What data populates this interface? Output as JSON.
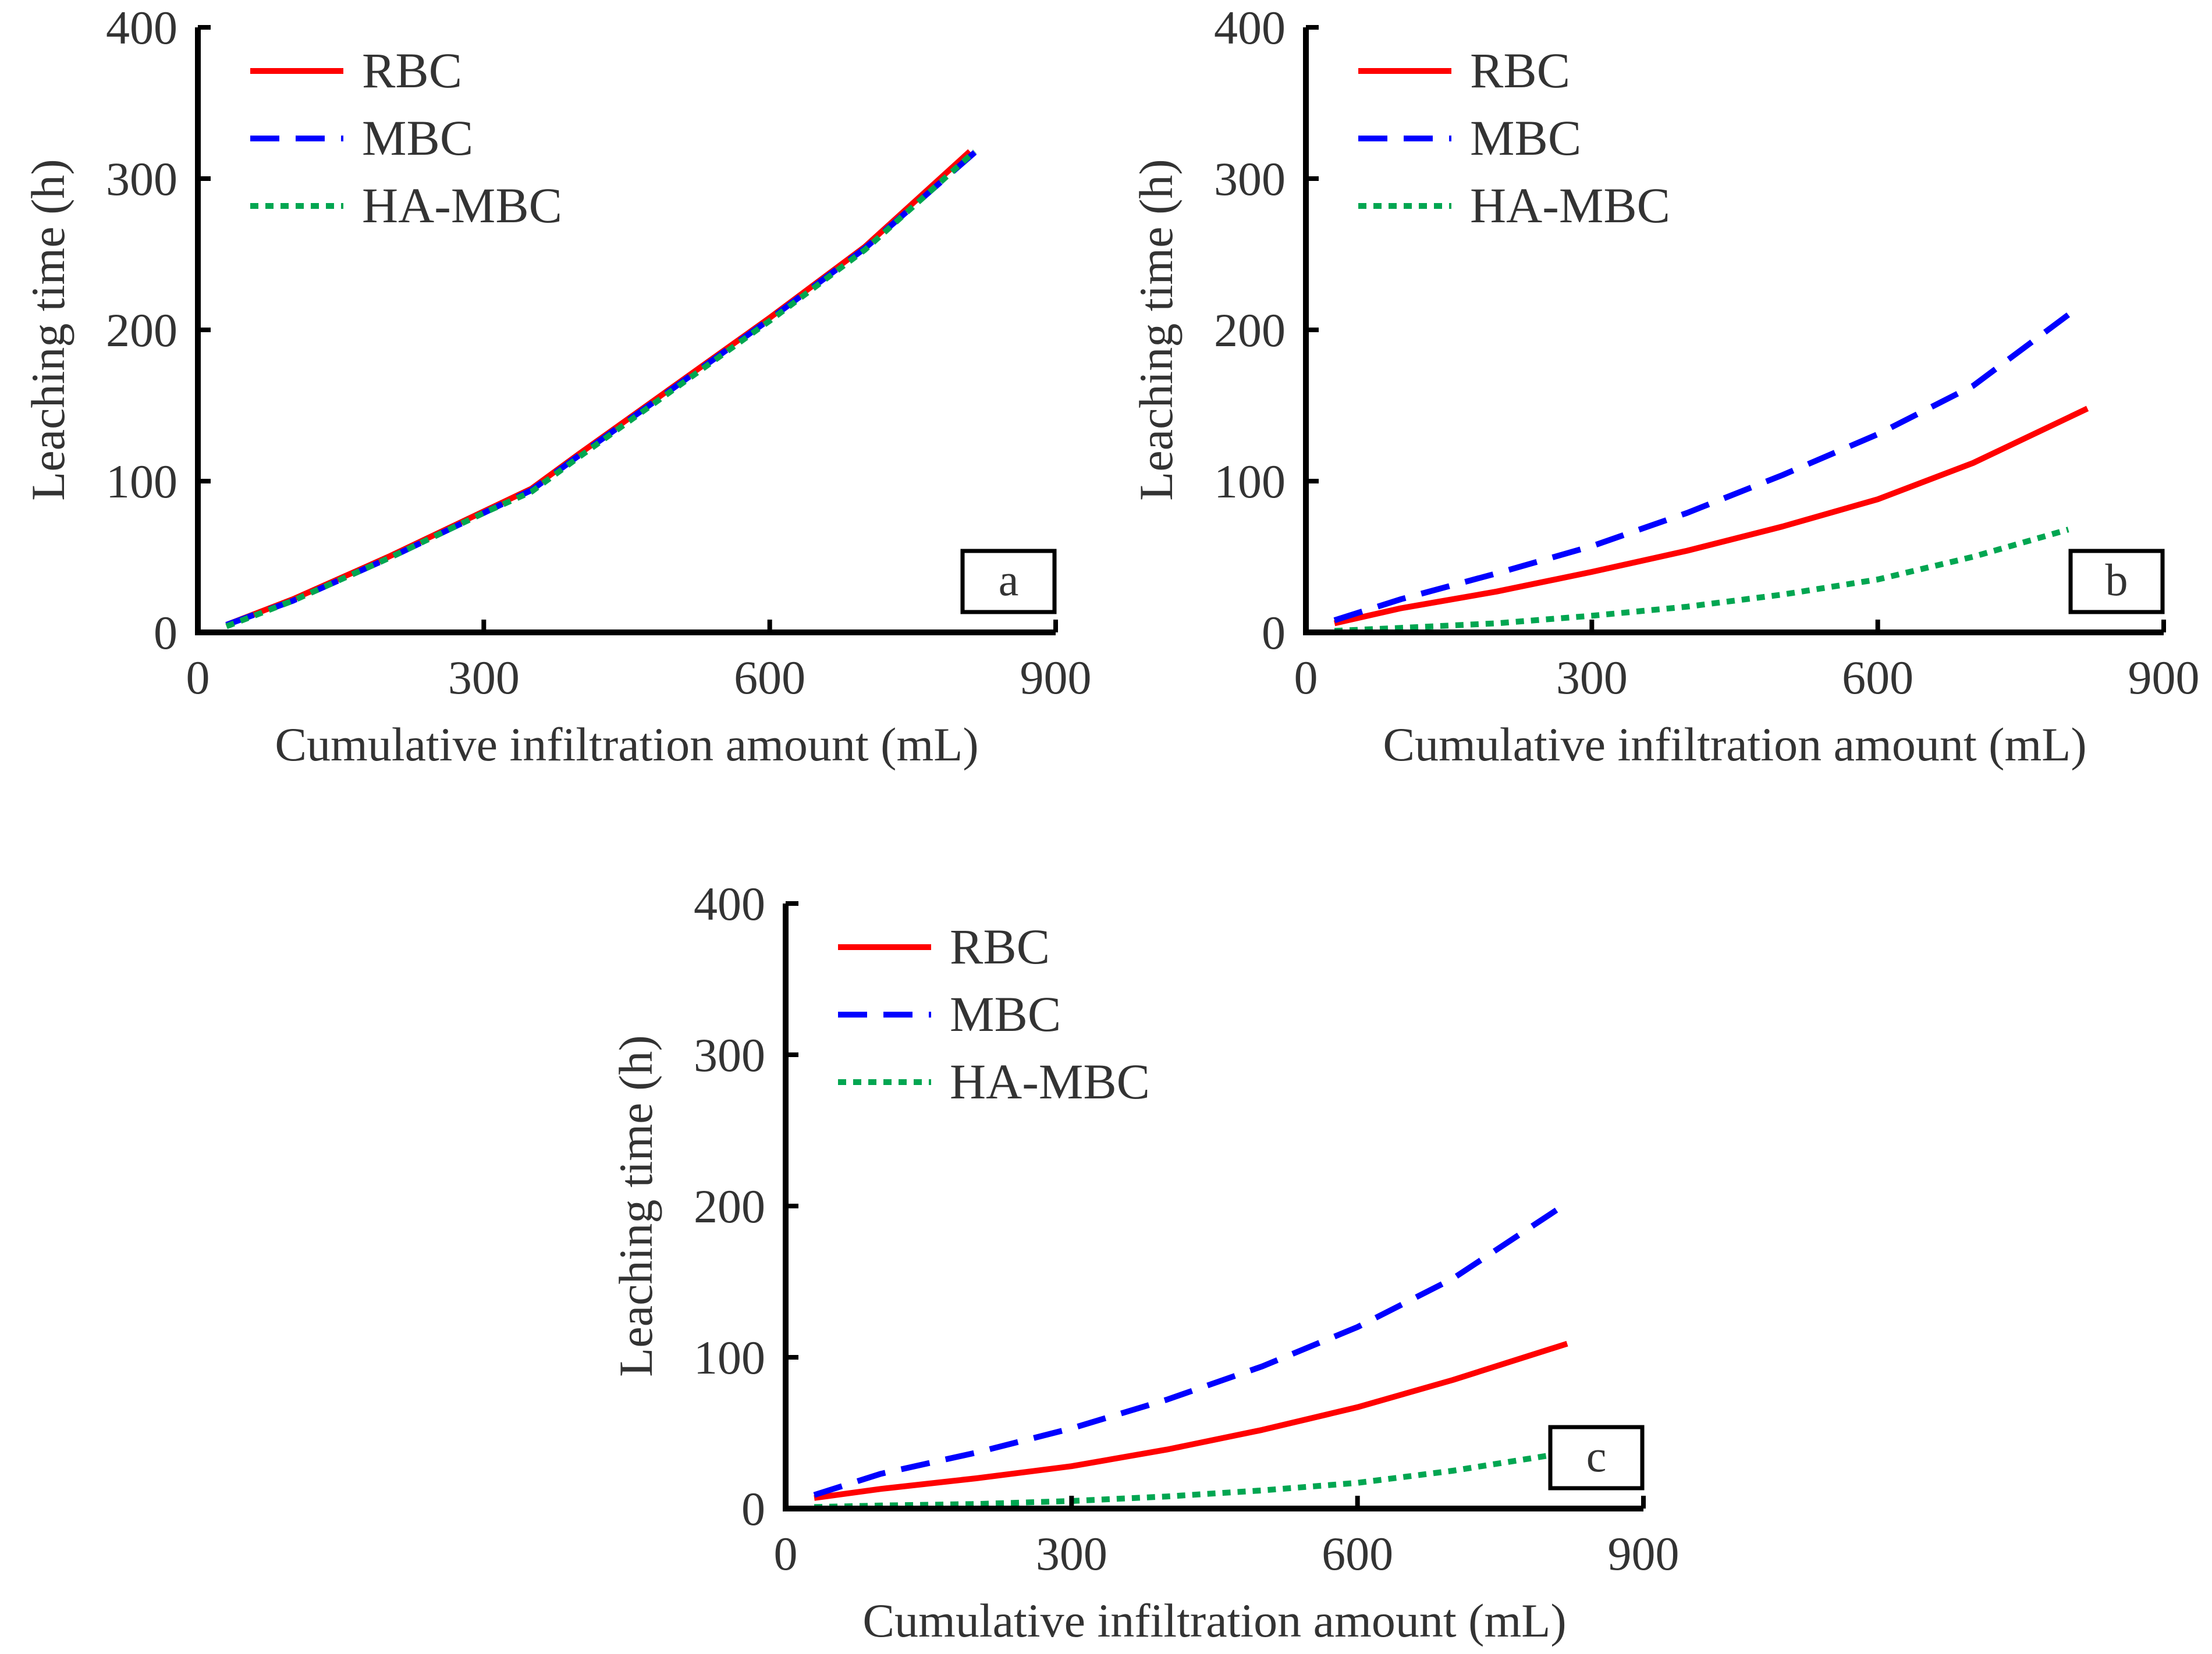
{
  "chart_data": [
    {
      "type": "line",
      "panel_label": "a",
      "xlabel": "Cumulative infiltration amount (mL)",
      "ylabel": "Leaching time (h)",
      "xlim": [
        0,
        900
      ],
      "ylim": [
        0,
        400
      ],
      "xticks": [
        0,
        300,
        600,
        900
      ],
      "yticks": [
        0,
        100,
        200,
        300,
        400
      ],
      "legend_position": "top-left",
      "series": [
        {
          "name": "RBC",
          "color": "#ff0000",
          "style": "solid",
          "x": [
            30,
            100,
            200,
            300,
            350,
            400,
            500,
            600,
            700,
            810
          ],
          "y": [
            5,
            22,
            50,
            80,
            95,
            118,
            163,
            208,
            255,
            318
          ]
        },
        {
          "name": "MBC",
          "color": "#0000ff",
          "style": "dashed",
          "x": [
            30,
            100,
            200,
            300,
            350,
            400,
            500,
            600,
            700,
            820
          ],
          "y": [
            5,
            21,
            49,
            79,
            94,
            117,
            162,
            207,
            254,
            320
          ]
        },
        {
          "name": "HA-MBC",
          "color": "#00a651",
          "style": "dotted",
          "x": [
            30,
            100,
            200,
            300,
            350,
            400,
            500,
            600,
            700,
            815
          ],
          "y": [
            4,
            21,
            49,
            79,
            93,
            116,
            161,
            206,
            253,
            318
          ]
        }
      ]
    },
    {
      "type": "line",
      "panel_label": "b",
      "xlabel": "Cumulative infiltration amount (mL)",
      "ylabel": "Leaching time (h)",
      "xlim": [
        0,
        900
      ],
      "ylim": [
        0,
        400
      ],
      "xticks": [
        0,
        300,
        600,
        900
      ],
      "yticks": [
        0,
        100,
        200,
        300,
        400
      ],
      "legend_position": "top-left",
      "series": [
        {
          "name": "RBC",
          "color": "#ff0000",
          "style": "solid",
          "x": [
            30,
            100,
            200,
            300,
            400,
            500,
            600,
            700,
            820
          ],
          "y": [
            6,
            16,
            27,
            40,
            54,
            70,
            88,
            112,
            148
          ]
        },
        {
          "name": "MBC",
          "color": "#0000ff",
          "style": "dashed",
          "x": [
            30,
            100,
            200,
            300,
            400,
            500,
            600,
            700,
            800
          ],
          "y": [
            8,
            22,
            39,
            57,
            79,
            104,
            131,
            163,
            210
          ]
        },
        {
          "name": "HA-MBC",
          "color": "#00a651",
          "style": "dotted",
          "x": [
            30,
            100,
            200,
            300,
            400,
            500,
            600,
            700,
            800
          ],
          "y": [
            1,
            3,
            6,
            11,
            17,
            25,
            35,
            50,
            68
          ]
        }
      ]
    },
    {
      "type": "line",
      "panel_label": "c",
      "xlabel": "Cumulative infiltration amount (mL)",
      "ylabel": "Leaching time (h)",
      "xlim": [
        0,
        900
      ],
      "ylim": [
        0,
        400
      ],
      "xticks": [
        0,
        300,
        600,
        900
      ],
      "yticks": [
        0,
        100,
        200,
        300,
        400
      ],
      "legend_position": "top-left",
      "series": [
        {
          "name": "RBC",
          "color": "#ff0000",
          "style": "solid",
          "x": [
            30,
            100,
            200,
            300,
            400,
            500,
            600,
            700,
            820
          ],
          "y": [
            7,
            13,
            20,
            28,
            39,
            52,
            67,
            85,
            109
          ]
        },
        {
          "name": "MBC",
          "color": "#0000ff",
          "style": "dashed",
          "x": [
            30,
            100,
            200,
            300,
            400,
            500,
            600,
            700,
            820
          ],
          "y": [
            9,
            23,
            37,
            53,
            72,
            94,
            120,
            152,
            202
          ]
        },
        {
          "name": "HA-MBC",
          "color": "#00a651",
          "style": "dotted",
          "x": [
            30,
            100,
            200,
            300,
            400,
            500,
            600,
            700,
            820
          ],
          "y": [
            1,
            2,
            3,
            5,
            8,
            12,
            17,
            25,
            37
          ]
        }
      ]
    }
  ]
}
